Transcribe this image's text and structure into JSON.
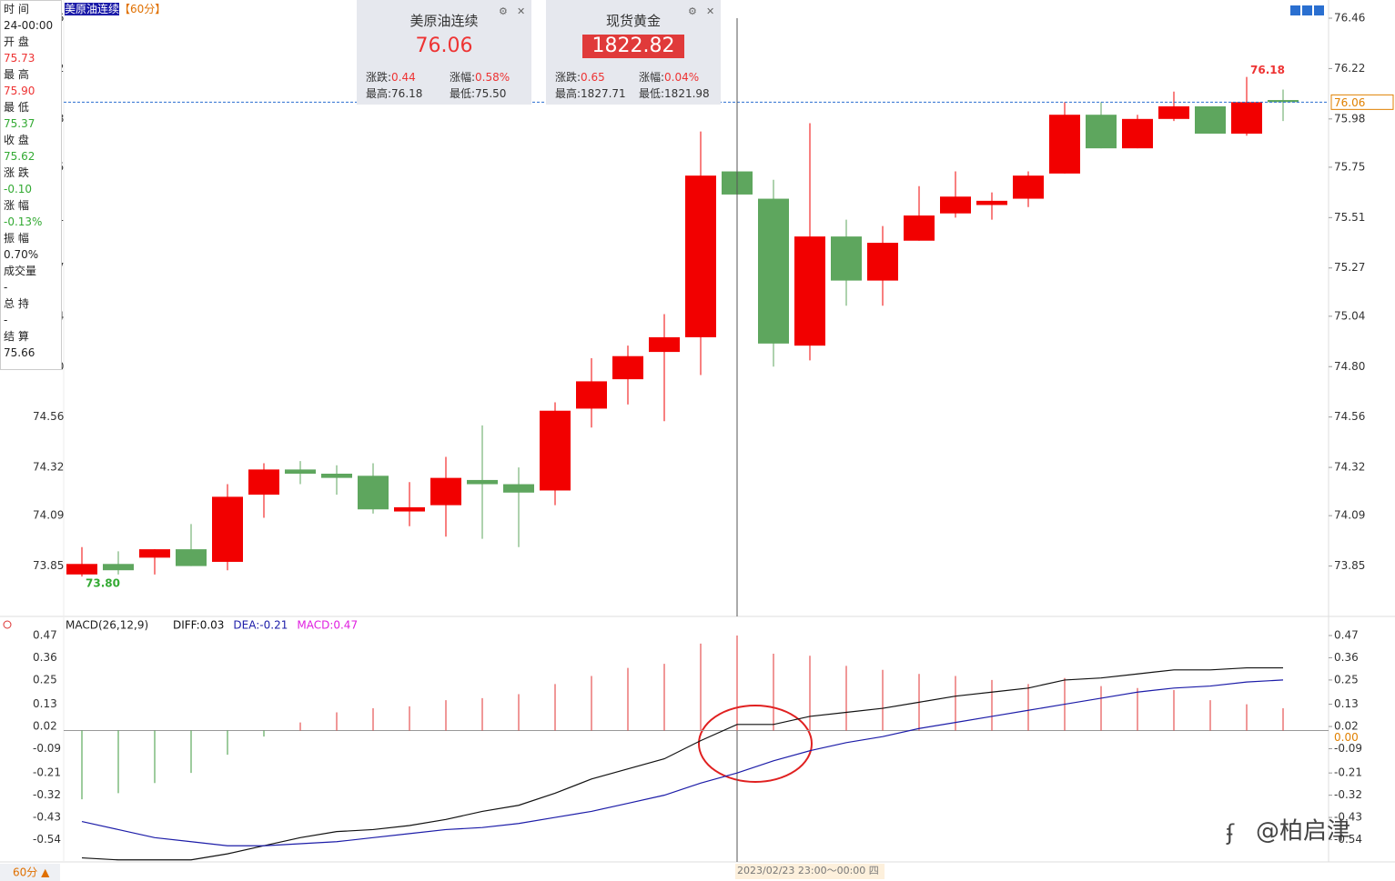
{
  "chart_data": [
    {
      "type": "candlestick",
      "title": "美原油连续",
      "period": "【60分】",
      "up_color": "#f20000",
      "down_color": "#5ea65e",
      "open": [
        73.81,
        73.86,
        73.89,
        73.93,
        73.87,
        74.19,
        74.31,
        74.29,
        74.28,
        74.11,
        74.14,
        74.26,
        74.24,
        74.21,
        74.6,
        74.74,
        74.87,
        74.94,
        75.73,
        75.6,
        74.9,
        75.42,
        75.21,
        75.4,
        75.53,
        75.57,
        75.6,
        75.72,
        76.0,
        75.84,
        75.98,
        76.04,
        75.91,
        76.07
      ],
      "high": [
        73.94,
        73.92,
        73.93,
        74.05,
        74.24,
        74.34,
        74.35,
        74.33,
        74.34,
        74.25,
        74.37,
        74.52,
        74.32,
        74.63,
        74.84,
        74.9,
        75.05,
        75.92,
        75.9,
        75.69,
        75.96,
        75.5,
        75.47,
        75.66,
        75.73,
        75.63,
        75.73,
        76.06,
        76.06,
        76.0,
        76.11,
        76.04,
        76.18,
        76.12
      ],
      "low": [
        73.8,
        73.81,
        73.81,
        73.85,
        73.83,
        74.08,
        74.24,
        74.19,
        74.1,
        74.04,
        73.99,
        73.98,
        73.94,
        74.14,
        74.51,
        74.62,
        74.54,
        74.76,
        75.37,
        74.8,
        74.83,
        75.09,
        75.09,
        75.4,
        75.51,
        75.5,
        75.56,
        75.72,
        75.84,
        75.84,
        75.97,
        75.91,
        75.9,
        75.97
      ],
      "close": [
        73.86,
        73.83,
        73.93,
        73.85,
        74.18,
        74.31,
        74.29,
        74.27,
        74.12,
        74.13,
        74.27,
        74.24,
        74.2,
        74.59,
        74.73,
        74.85,
        74.94,
        75.71,
        75.62,
        74.91,
        75.42,
        75.21,
        75.39,
        75.52,
        75.61,
        75.59,
        75.71,
        76.0,
        75.84,
        75.98,
        76.04,
        75.91,
        76.06,
        76.06
      ],
      "ylim": [
        73.61,
        76.46
      ],
      "yticks": [
        76.46,
        76.22,
        75.98,
        75.75,
        75.51,
        75.27,
        75.04,
        {
          "value": 74.8,
          "label": "74.80"
        },
        74.56,
        74.32,
        74.09,
        73.85
      ],
      "high_marker": 76.18,
      "low_marker": {
        "value": 73.8,
        "label": "73.80"
      },
      "last_price": 76.06,
      "crosshair": {
        "index": 18,
        "label": "2023/02/23 23:00～00:00 四"
      }
    },
    {
      "type": "macd",
      "title": "MACD(26,12,9)",
      "series": [
        {
          "name": "MACD:0.47",
          "color": "#e020e0",
          "up_color": "#e03030",
          "down_color": "#3c9a3c",
          "values": [
            -0.34,
            -0.31,
            -0.26,
            -0.21,
            -0.12,
            -0.03,
            0.04,
            0.09,
            0.11,
            0.12,
            0.15,
            0.16,
            0.18,
            0.23,
            0.27,
            0.31,
            0.33,
            0.43,
            0.47,
            0.38,
            0.37,
            0.32,
            0.3,
            0.28,
            0.27,
            0.25,
            0.23,
            0.26,
            0.22,
            0.21,
            0.2,
            0.15,
            0.13,
            0.11
          ]
        },
        {
          "name": "DIFF:0.03",
          "color": "#111111",
          "values": [
            -0.63,
            -0.64,
            -0.64,
            -0.64,
            -0.61,
            -0.57,
            -0.53,
            -0.5,
            -0.49,
            -0.47,
            -0.44,
            -0.4,
            -0.37,
            -0.31,
            -0.24,
            -0.19,
            -0.14,
            -0.05,
            0.03,
            0.03,
            0.07,
            0.09,
            0.11,
            0.14,
            0.17,
            0.19,
            0.21,
            0.25,
            0.26,
            0.28,
            0.3,
            0.3,
            0.31,
            0.31
          ]
        },
        {
          "name": "DEA:-0.21",
          "color": "#1c1ca8",
          "values": [
            -0.45,
            -0.49,
            -0.53,
            -0.55,
            -0.57,
            -0.57,
            -0.56,
            -0.55,
            -0.53,
            -0.51,
            -0.49,
            -0.48,
            -0.46,
            -0.43,
            -0.4,
            -0.36,
            -0.32,
            -0.26,
            -0.21,
            -0.15,
            -0.1,
            -0.06,
            -0.03,
            0.01,
            0.04,
            0.07,
            0.1,
            0.13,
            0.16,
            0.19,
            0.21,
            0.22,
            0.24,
            0.25
          ]
        }
      ],
      "ylim": [
        -0.65,
        0.47
      ],
      "yticks": [
        0.47,
        0.36,
        0.25,
        0.13,
        0.02,
        -0.09,
        -0.21,
        -0.32,
        -0.43,
        -0.54
      ],
      "zero_line": {
        "value": 0,
        "label": "0.00"
      }
    }
  ],
  "info": [
    {
      "label": "时 间",
      "value": "24-00:00",
      "color": "#222"
    },
    {
      "label": "开 盘",
      "value": "75.73",
      "color": "#e33"
    },
    {
      "label": "最 高",
      "value": "75.90",
      "color": "#e33"
    },
    {
      "label": "最 低",
      "value": "75.37",
      "color": "#3a3"
    },
    {
      "label": "收 盘",
      "value": "75.62",
      "color": "#3a3"
    },
    {
      "label": "涨 跌",
      "value": "-0.10",
      "color": "#3a3"
    },
    {
      "label": "涨 幅",
      "value": "-0.13%",
      "color": "#3a3"
    },
    {
      "label": "振 幅",
      "value": "0.70%",
      "color": "#222"
    },
    {
      "label": "成交量",
      "value": "-",
      "color": "#222"
    },
    {
      "label": "总 持",
      "value": "-",
      "color": "#222"
    },
    {
      "label": "结 算",
      "value": "75.66",
      "color": "#222"
    }
  ],
  "quotes": [
    {
      "name": "美原油连续",
      "price": "76.06",
      "change_label": "涨跌:",
      "change": "0.44",
      "pct_label": "涨幅:",
      "pct": "0.58%",
      "high_label": "最高:",
      "high": "76.18",
      "low_label": "最低:",
      "low": "75.50"
    },
    {
      "name": "现货黄金",
      "price": "1822.82",
      "change_label": "涨跌:",
      "change": "0.65",
      "pct_label": "涨幅:",
      "pct": "0.04%",
      "high_label": "最高:",
      "high": "1827.71",
      "low_label": "最低:",
      "low": "1821.98"
    }
  ],
  "footer": {
    "period_button": "60分 ▲",
    "watermark": "@柏启津"
  }
}
